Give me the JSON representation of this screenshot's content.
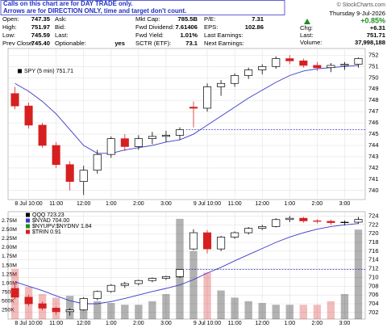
{
  "notice": [
    "Calls on this chart are for DAY TRADE only.",
    "Arrows are for DIRECTION ONLY, time and target don't count."
  ],
  "source": "© StockCharts.com",
  "quote": {
    "columns": [
      [
        {
          "label": "Open:",
          "value": "747.35"
        },
        {
          "label": "High:",
          "value": "751.97"
        },
        {
          "label": "Low:",
          "value": "745.59"
        },
        {
          "label": "Prev Close:",
          "value": "745.40"
        }
      ],
      [
        {
          "label": "Ask:"
        },
        {
          "label": "Bid:"
        },
        {
          "label": "Last:"
        },
        {
          "label": "Optionable:",
          "value": "yes"
        }
      ],
      [
        {
          "label": "Mkt Cap:",
          "value": "785.5B"
        },
        {
          "label": "Fwd Dividend:",
          "value": "7.61406"
        },
        {
          "label": "Fwd Yield:",
          "value": "1.01%"
        },
        {
          "label": "SCTR (ETF):",
          "value": "73.1"
        }
      ],
      [
        {
          "label": "P/E:",
          "value": "7.31"
        },
        {
          "label": "EPS:",
          "value": "102.86"
        },
        {
          "label": "Last Earnings:"
        },
        {
          "label": "Next Earnings:"
        }
      ]
    ],
    "date": "Thursday  9-Jul-2026",
    "change_pct": "+0.85%",
    "side": [
      {
        "label": "Chg:",
        "value": "+6.31"
      },
      {
        "label": "Last:",
        "value": "751.71"
      },
      {
        "label": "Volume:",
        "value": "37,998,188"
      }
    ]
  },
  "chart_data": [
    {
      "type": "candlestick",
      "legend": [
        {
          "name": "SPY (5 min) 751.71",
          "color": "#000000"
        }
      ],
      "up_color": "#000000",
      "down_color": "#d62020",
      "x": [
        0,
        1,
        2,
        3,
        4,
        5,
        6,
        7,
        8,
        9,
        10,
        11,
        12,
        13,
        14,
        15,
        16,
        17,
        18,
        19,
        20,
        21,
        22,
        23,
        24,
        25
      ],
      "open": [
        748.6,
        747.5,
        745.8,
        744.0,
        742.3,
        740.8,
        741.8,
        743.2,
        744.6,
        743.9,
        744.6,
        744.8,
        744.9,
        747.4,
        747.3,
        749.2,
        749.5,
        750.2,
        750.7,
        751.0,
        751.7,
        751.5,
        751.1,
        750.9,
        751.1,
        751.2
      ],
      "high": [
        749.2,
        747.8,
        746.0,
        744.3,
        742.6,
        742.2,
        743.6,
        744.8,
        745.0,
        744.9,
        745.2,
        745.3,
        745.6,
        747.9,
        749.5,
        749.8,
        750.4,
        750.9,
        751.2,
        751.9,
        752.0,
        751.7,
        751.4,
        751.3,
        751.4,
        751.8
      ],
      "low": [
        747.2,
        745.5,
        743.8,
        742.0,
        740.0,
        739.6,
        741.5,
        742.9,
        743.5,
        743.6,
        744.1,
        744.3,
        744.5,
        745.6,
        747.0,
        748.4,
        749.2,
        749.9,
        750.3,
        750.8,
        751.2,
        750.9,
        750.6,
        750.5,
        750.7,
        750.9
      ],
      "close": [
        747.5,
        745.8,
        744.0,
        742.3,
        740.8,
        741.8,
        743.2,
        744.6,
        743.9,
        744.6,
        744.8,
        744.9,
        745.4,
        747.3,
        749.2,
        749.5,
        750.2,
        750.7,
        751.0,
        751.7,
        751.5,
        751.1,
        750.9,
        751.1,
        751.2,
        751.71
      ],
      "ma": {
        "color": "#3a3ac8",
        "values": [
          749.5,
          748.8,
          747.9,
          746.8,
          745.4,
          744.0,
          743.3,
          743.3,
          743.6,
          743.8,
          744.0,
          744.3,
          744.5,
          745.0,
          745.8,
          746.6,
          747.4,
          748.2,
          748.9,
          749.6,
          750.2,
          750.6,
          750.8,
          750.9,
          751.0,
          751.1
        ]
      },
      "ref_line": {
        "value": 745.4,
        "color": "#3a3ac8"
      },
      "xlim": [
        -0.5,
        25.5
      ],
      "xticks": [
        {
          "value": 1,
          "label": "8 Jul 10:00"
        },
        {
          "value": 3,
          "label": "11:00"
        },
        {
          "value": 5,
          "label": "12:00"
        },
        {
          "value": 7,
          "label": "1:00"
        },
        {
          "value": 9,
          "label": "2:00"
        },
        {
          "value": 11,
          "label": "3:00"
        },
        {
          "value": 14,
          "label": "9 Jul 10:00"
        },
        {
          "value": 16,
          "label": "11:00"
        },
        {
          "value": 18,
          "label": "12:00"
        },
        {
          "value": 20,
          "label": "1:00"
        },
        {
          "value": 22,
          "label": "2:00"
        },
        {
          "value": 24,
          "label": "3:00"
        }
      ],
      "ylim": [
        739.2,
        752.6
      ],
      "yticks": [
        740,
        741,
        742,
        743,
        744,
        745,
        746,
        747,
        748,
        749,
        750,
        751,
        752
      ],
      "grid": true
    },
    {
      "type": "candlestick",
      "legend": [
        {
          "name": "QQQ 723.23",
          "color": "#000000"
        },
        {
          "name": "$NYAD 704.00",
          "color": "#3a3ac8"
        },
        {
          "name": "$NYUPV:$NYDNV 1.84",
          "color": "#1f8f1f"
        },
        {
          "name": "$TRIN 0.91",
          "color": "#d62020"
        }
      ],
      "up_color": "#000000",
      "down_color": "#d62020",
      "x": [
        0,
        1,
        2,
        3,
        4,
        5,
        6,
        7,
        8,
        9,
        10,
        11,
        12,
        13,
        14,
        15,
        16,
        17,
        18,
        19,
        20,
        21,
        22,
        23,
        24,
        25
      ],
      "open": [
        707.5,
        705.5,
        704.0,
        703.0,
        702.2,
        702.6,
        705.2,
        706.8,
        708.2,
        708.6,
        709.3,
        709.8,
        710.2,
        716.5,
        720.2,
        716.5,
        719.2,
        720.2,
        721.2,
        721.6,
        723.2,
        723.5,
        722.9,
        722.8,
        722.5,
        722.6
      ],
      "high": [
        708.5,
        706.0,
        704.5,
        703.3,
        703.0,
        705.5,
        707.0,
        708.5,
        709.0,
        709.5,
        710.0,
        710.4,
        711.9,
        721.0,
        720.8,
        719.5,
        720.5,
        721.5,
        722.0,
        723.5,
        724.0,
        723.8,
        723.3,
        723.2,
        723.0,
        723.8
      ],
      "low": [
        705.0,
        703.5,
        702.5,
        701.5,
        701.3,
        702.4,
        704.8,
        706.5,
        707.6,
        708.2,
        708.9,
        709.4,
        709.9,
        716.2,
        715.5,
        716.0,
        718.8,
        719.8,
        720.8,
        721.4,
        722.6,
        722.5,
        722.3,
        722.0,
        721.9,
        722.2
      ],
      "close": [
        705.5,
        704.0,
        703.0,
        702.2,
        702.6,
        705.2,
        706.8,
        708.2,
        708.6,
        709.3,
        709.8,
        710.2,
        711.8,
        720.2,
        716.5,
        719.2,
        720.2,
        721.2,
        721.6,
        723.2,
        723.5,
        722.9,
        722.8,
        722.5,
        722.6,
        723.23
      ],
      "ma": {
        "color": "#3a3ac8",
        "values": [
          709,
          708,
          707,
          705.8,
          704.7,
          704,
          704,
          704.5,
          705.2,
          706,
          706.8,
          707.5,
          708.3,
          709.5,
          711,
          712.3,
          713.8,
          715.2,
          716.6,
          718,
          719.2,
          720.2,
          721,
          721.6,
          722,
          722.3
        ]
      },
      "ref_line": {
        "value": 711.8,
        "color": "#3a3ac8"
      },
      "volume": {
        "values": [
          1400000,
          900000,
          700000,
          600000,
          650000,
          550000,
          500000,
          450000,
          400000,
          400000,
          500000,
          700000,
          2800000,
          1900000,
          1300000,
          800000,
          600000,
          500000,
          450000,
          400000,
          400000,
          400000,
          400000,
          500000,
          700000,
          2500000
        ],
        "ylim": [
          0,
          3000000
        ],
        "yticks": [
          {
            "value": 250000,
            "label": "250K"
          },
          {
            "value": 500000,
            "label": "500K"
          },
          {
            "value": 750000,
            "label": "750K"
          },
          {
            "value": 1000000,
            "label": "1.00M"
          },
          {
            "value": 1250000,
            "label": "1.25M"
          },
          {
            "value": 1500000,
            "label": "1.50M"
          },
          {
            "value": 1750000,
            "label": "1.75M"
          },
          {
            "value": 2000000,
            "label": "2.00M"
          },
          {
            "value": 2250000,
            "label": "2.25M"
          },
          {
            "value": 2500000,
            "label": "2.50M"
          },
          {
            "value": 2750000,
            "label": "2.75M"
          }
        ]
      },
      "xlim": [
        -0.5,
        25.5
      ],
      "xticks": [
        {
          "value": 1,
          "label": "8 Jul 10:00"
        },
        {
          "value": 3,
          "label": "11:00"
        },
        {
          "value": 5,
          "label": "12:00"
        },
        {
          "value": 7,
          "label": "1:00"
        },
        {
          "value": 9,
          "label": "2:00"
        },
        {
          "value": 11,
          "label": "3:00"
        },
        {
          "value": 14,
          "label": "9 Jul 10:00"
        },
        {
          "value": 16,
          "label": "11:00"
        },
        {
          "value": 18,
          "label": "12:00"
        },
        {
          "value": 20,
          "label": "1:00"
        },
        {
          "value": 22,
          "label": "2:00"
        },
        {
          "value": 24,
          "label": "3:00"
        }
      ],
      "ylim": [
        700.5,
        725
      ],
      "yticks": [
        702,
        704,
        706,
        708,
        710,
        712,
        714,
        716,
        718,
        720,
        722,
        724
      ],
      "grid": true
    }
  ]
}
